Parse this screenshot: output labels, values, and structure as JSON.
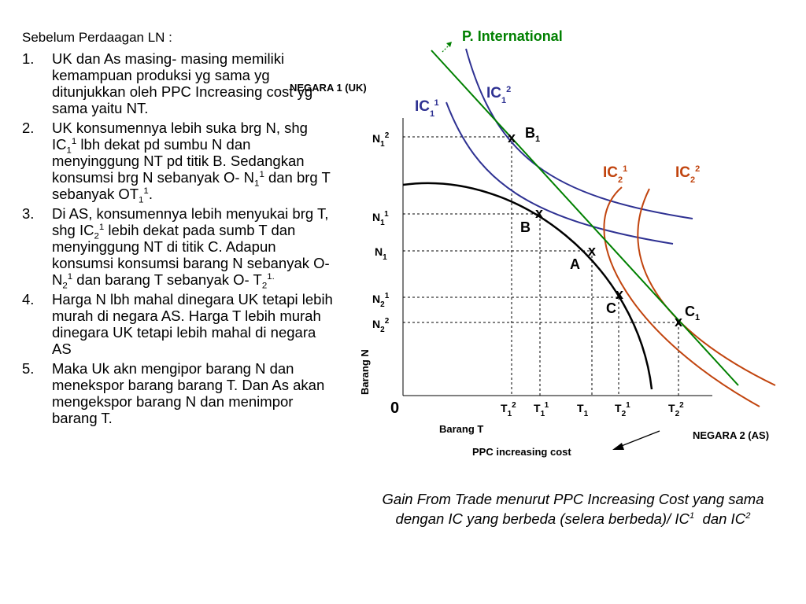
{
  "intro": "Sebelum Perdaagan LN :",
  "points": [
    {
      "num": "1.",
      "html": "UK dan As masing- masing memiliki kemampuan produksi yg sama yg ditunjukkan oleh PPC Increasing cost yg sama yaitu NT."
    },
    {
      "num": "2.",
      "html": "UK konsumennya lebih suka brg N, shg IC<sub>1</sub><sup>1</sup> lbh dekat pd sumbu N dan menyinggung NT pd titik B. Sedangkan konsumsi brg N sebanyak O- N<sub>1</sub><sup>1</sup> dan brg T sebanyak OT<sub>1</sub><sup>1</sup>."
    },
    {
      "num": "3.",
      "html": "Di AS, konsumennya lebih menyukai brg T, shg IC<sub>2</sub><sup>1</sup> lebih dekat pada sumb T dan menyinggung NT di titik C. Adapun konsumsi konsumsi barang N sebanyak O- N<sub>2</sub><sup>1</sup> dan barang T sebanyak O- T<sub>2</sub><sup>1.</sup>"
    },
    {
      "num": "4.",
      "html": "Harga N lbh mahal dinegara UK tetapi lebih murah di negara AS. Harga T lebih murah dinegara UK tetapi lebih mahal di negara AS"
    },
    {
      "num": "5.",
      "html": "Maka Uk akn mengipor barang N dan menekspor barang barang T. Dan As akan mengekspor barang N dan menimpor barang T."
    }
  ],
  "diagram": {
    "title": "P. International",
    "country1": "NEGARA 1 (UK)",
    "country2": "NEGARA 2 (AS)",
    "ppc_label": "PPC increasing cost",
    "origin": "0",
    "y_axis_label": "Barang N",
    "x_axis_label": "Barang T",
    "curve_labels": {
      "ic1_1": "IC<tspan font-size='11' dy='7'>1</tspan><tspan font-size='11' dy='-14'>1</tspan>",
      "ic1_2": "IC<tspan font-size='11' dy='7'>1</tspan><tspan font-size='11' dy='-14'>2</tspan>",
      "ic2_1": "IC<tspan font-size='11' dy='7'>2</tspan><tspan font-size='11' dy='-14'>1</tspan>",
      "ic2_2": "IC<tspan font-size='11' dy='7'>2</tspan><tspan font-size='11' dy='-14'>2</tspan>"
    },
    "y_ticks": [
      {
        "key": "N1-2",
        "html": "N<tspan font-size='10' dy='5'>1</tspan><tspan font-size='10' dy='-11'>2</tspan>"
      },
      {
        "key": "N1-1",
        "html": "N<tspan font-size='10' dy='5'>1</tspan><tspan font-size='10' dy='-11'>1</tspan>"
      },
      {
        "key": "N1",
        "html": "N<tspan font-size='10' dy='5'>1</tspan>"
      },
      {
        "key": "N2-1",
        "html": "N<tspan font-size='10' dy='5'>2</tspan><tspan font-size='10' dy='-11'>1</tspan>"
      },
      {
        "key": "N2-2",
        "html": "N<tspan font-size='10' dy='5'>2</tspan><tspan font-size='10' dy='-11'>2</tspan>"
      }
    ],
    "x_ticks": [
      {
        "key": "T1-2",
        "html": "T<tspan font-size='10' dy='5'>1</tspan><tspan font-size='10' dy='-11'>2</tspan>"
      },
      {
        "key": "T1-1",
        "html": "T<tspan font-size='10' dy='5'>1</tspan><tspan font-size='10' dy='-11'>1</tspan>"
      },
      {
        "key": "T1",
        "html": "T<tspan font-size='10' dy='5'>1</tspan>"
      },
      {
        "key": "T2-1",
        "html": "T<tspan font-size='10' dy='5'>2</tspan><tspan font-size='10' dy='-11'>1</tspan>"
      },
      {
        "key": "T2-2",
        "html": "T<tspan font-size='10' dy='5'>2</tspan><tspan font-size='10' dy='-11'>2</tspan>"
      }
    ],
    "points": [
      {
        "key": "B1",
        "mark": "x",
        "html": "B<tspan font-size='11' dy='5'>1</tspan>"
      },
      {
        "key": "B",
        "mark": "x",
        "html": "B"
      },
      {
        "key": "A",
        "mark": "x",
        "html": "A"
      },
      {
        "key": "C",
        "mark": "x",
        "html": "C"
      },
      {
        "key": "C1",
        "mark": "x",
        "html": "C<tspan font-size='11' dy='5'>1</tspan>"
      }
    ],
    "colors": {
      "ic_uk": "#2e3192",
      "ic_as": "#c1440e",
      "price_line": "#008000",
      "ppc": "#000000",
      "arrow": "#008000"
    }
  },
  "caption_html": "Gain From Trade menurut PPC Increasing Cost yang sama dengan IC yang berbeda (selera berbeda)/ IC<sup>1</sup>&nbsp; dan IC<sup>2</sup>"
}
